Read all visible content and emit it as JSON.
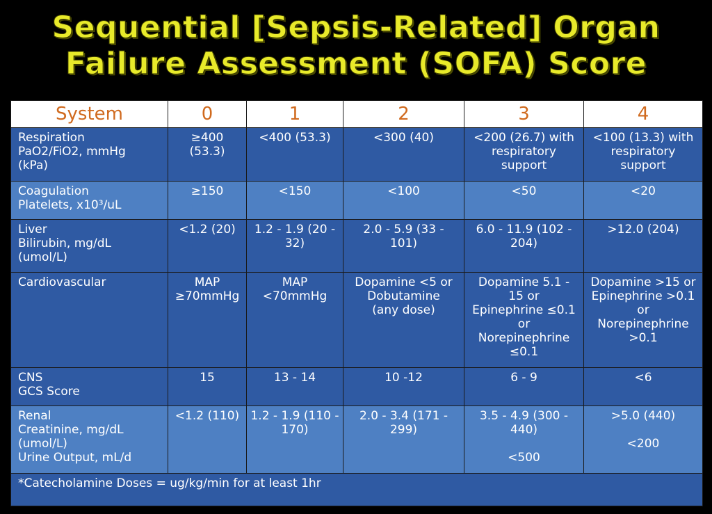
{
  "title": {
    "line1": "Sequential [Sepsis-Related] Organ",
    "line2": "Failure Assessment (SOFA) Score"
  },
  "colors": {
    "title": "#e8ea2a",
    "header_text": "#d06a1e",
    "row_dark": "#2f5aa3",
    "row_light": "#4e80c3",
    "background": "#000000"
  },
  "table": {
    "headers": [
      "System",
      "0",
      "1",
      "2",
      "3",
      "4"
    ],
    "rows": {
      "respiration": {
        "system": [
          "Respiration",
          "PaO2/FiO2, mmHg",
          "(kPa)"
        ],
        "c0": [
          "≥400",
          "(53.3)"
        ],
        "c1": [
          "<400 (53.3)"
        ],
        "c2": [
          "<300 (40)"
        ],
        "c3": [
          "<200 (26.7) with",
          "respiratory",
          "support"
        ],
        "c4": [
          "<100 (13.3) with",
          "respiratory",
          "support"
        ]
      },
      "coagulation": {
        "system": [
          "Coagulation",
          "Platelets, x10³/uL"
        ],
        "c0": [
          "≥150"
        ],
        "c1": [
          "<150"
        ],
        "c2": [
          "<100"
        ],
        "c3": [
          "<50"
        ],
        "c4": [
          "<20"
        ]
      },
      "liver": {
        "system": [
          "Liver",
          "Bilirubin, mg/dL",
          "(umol/L)"
        ],
        "c0": [
          "<1.2 (20)"
        ],
        "c1": [
          "1.2 - 1.9 (20 -",
          "32)"
        ],
        "c2": [
          "2.0 - 5.9 (33 -",
          "101)"
        ],
        "c3": [
          "6.0 - 11.9 (102 -",
          "204)"
        ],
        "c4": [
          ">12.0 (204)"
        ]
      },
      "cardiovascular": {
        "system": [
          "Cardiovascular"
        ],
        "c0": [
          "MAP",
          "≥70mmHg"
        ],
        "c1": [
          "MAP",
          "<70mmHg"
        ],
        "c2": [
          "Dopamine <5 or",
          "Dobutamine",
          "(any dose)"
        ],
        "c3": [
          "Dopamine 5.1 -",
          "15 or",
          "Epinephrine ≤0.1",
          "or",
          "Norepinephrine",
          "≤0.1"
        ],
        "c4": [
          "Dopamine >15 or",
          "Epinephrine >0.1",
          "or",
          "Norepinephrine",
          ">0.1"
        ]
      },
      "cns": {
        "system": [
          "CNS",
          "GCS Score"
        ],
        "c0": [
          "15"
        ],
        "c1": [
          "13 - 14"
        ],
        "c2": [
          "10 -12"
        ],
        "c3": [
          "6 - 9"
        ],
        "c4": [
          "<6"
        ]
      },
      "renal": {
        "system": [
          "Renal",
          "Creatinine, mg/dL",
          "(umol/L)",
          "Urine Output, mL/d"
        ],
        "c0": [
          "<1.2 (110)"
        ],
        "c1": [
          "1.2 - 1.9 (110 -",
          "170)"
        ],
        "c2": [
          "2.0 - 3.4 (171 -",
          "299)"
        ],
        "c3": [
          "3.5 - 4.9 (300 -",
          "440)"
        ],
        "c3_urine": "<500",
        "c4": [
          ">5.0 (440)"
        ],
        "c4_urine": "<200"
      }
    },
    "footnote": "*Catecholamine Doses = ug/kg/min for at least 1hr"
  }
}
